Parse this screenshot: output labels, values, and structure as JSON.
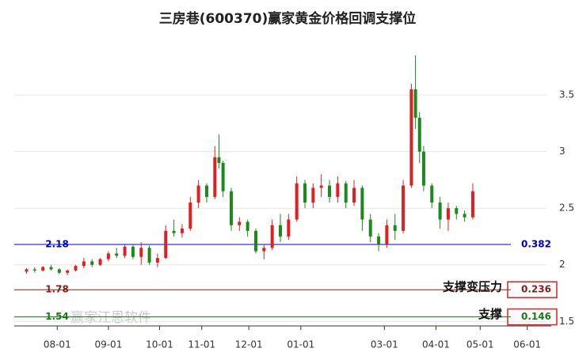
{
  "chart_data": {
    "type": "candlestick",
    "title": "三房巷(600370)赢家黄金价格回调支撑位",
    "watermark": "赢家江恩软件",
    "up_color": "#e02020",
    "down_color": "#1a8a1a",
    "xlim": [
      -3,
      127
    ],
    "ylim": [
      1.46,
      4.06
    ],
    "yticks": [
      1.5,
      2,
      2.5,
      3,
      3.5
    ],
    "xticks": [
      {
        "value": 7.5,
        "label": "08-01"
      },
      {
        "value": 20,
        "label": "09-01"
      },
      {
        "value": 32.5,
        "label": "10-01"
      },
      {
        "value": 42.8,
        "label": "11-01"
      },
      {
        "value": 54.3,
        "label": "12-01"
      },
      {
        "value": 67,
        "label": "01-01"
      },
      {
        "value": 87.4,
        "label": "03-01"
      },
      {
        "value": 100,
        "label": "04-01"
      },
      {
        "value": 110.8,
        "label": "05-01"
      },
      {
        "value": 122.3,
        "label": "06-01"
      }
    ],
    "grid": true,
    "candles": [
      [
        0,
        1.94,
        1.97,
        1.92,
        1.96
      ],
      [
        2,
        1.96,
        1.98,
        1.93,
        1.95
      ],
      [
        4,
        1.95,
        1.99,
        1.94,
        1.98
      ],
      [
        6,
        1.98,
        2.0,
        1.95,
        1.96
      ],
      [
        8,
        1.96,
        1.97,
        1.92,
        1.93
      ],
      [
        10,
        1.93,
        1.96,
        1.91,
        1.95
      ],
      [
        12,
        1.95,
        2.0,
        1.94,
        1.99
      ],
      [
        14,
        1.99,
        2.06,
        1.97,
        2.03
      ],
      [
        16,
        2.03,
        2.05,
        1.98,
        2.0
      ],
      [
        18,
        2.0,
        2.06,
        1.99,
        2.05
      ],
      [
        20,
        2.05,
        2.12,
        2.03,
        2.1
      ],
      [
        22,
        2.1,
        2.15,
        2.06,
        2.08
      ],
      [
        24,
        2.08,
        2.18,
        2.06,
        2.16
      ],
      [
        26,
        2.16,
        2.18,
        2.05,
        2.07
      ],
      [
        28,
        2.07,
        2.2,
        2.0,
        2.15
      ],
      [
        30,
        2.15,
        2.17,
        2.0,
        2.02
      ],
      [
        32,
        2.02,
        2.1,
        1.98,
        2.06
      ],
      [
        34,
        2.06,
        2.35,
        2.05,
        2.3
      ],
      [
        36,
        2.3,
        2.4,
        2.25,
        2.28
      ],
      [
        38,
        2.28,
        2.36,
        2.24,
        2.32
      ],
      [
        40,
        2.32,
        2.6,
        2.3,
        2.55
      ],
      [
        42,
        2.55,
        2.75,
        2.5,
        2.7
      ],
      [
        44,
        2.7,
        2.72,
        2.55,
        2.6
      ],
      [
        46,
        2.6,
        3.05,
        2.58,
        2.95
      ],
      [
        47,
        2.95,
        3.15,
        2.85,
        2.9
      ],
      [
        48,
        2.9,
        2.92,
        2.6,
        2.65
      ],
      [
        50,
        2.65,
        2.68,
        2.3,
        2.35
      ],
      [
        52,
        2.35,
        2.42,
        2.3,
        2.38
      ],
      [
        54,
        2.38,
        2.4,
        2.25,
        2.3
      ],
      [
        56,
        2.3,
        2.32,
        2.1,
        2.12
      ],
      [
        58,
        2.12,
        2.18,
        2.05,
        2.15
      ],
      [
        60,
        2.15,
        2.4,
        2.13,
        2.35
      ],
      [
        62,
        2.35,
        2.45,
        2.2,
        2.25
      ],
      [
        64,
        2.25,
        2.45,
        2.22,
        2.4
      ],
      [
        66,
        2.4,
        2.78,
        2.38,
        2.72
      ],
      [
        68,
        2.72,
        2.75,
        2.5,
        2.55
      ],
      [
        70,
        2.55,
        2.72,
        2.5,
        2.68
      ],
      [
        72,
        2.68,
        2.8,
        2.6,
        2.7
      ],
      [
        74,
        2.7,
        2.75,
        2.55,
        2.6
      ],
      [
        76,
        2.6,
        2.78,
        2.55,
        2.72
      ],
      [
        78,
        2.72,
        2.74,
        2.5,
        2.55
      ],
      [
        80,
        2.55,
        2.75,
        2.52,
        2.68
      ],
      [
        82,
        2.68,
        2.7,
        2.3,
        2.4
      ],
      [
        84,
        2.4,
        2.45,
        2.2,
        2.25
      ],
      [
        86,
        2.25,
        2.28,
        2.12,
        2.18
      ],
      [
        88,
        2.18,
        2.4,
        2.15,
        2.35
      ],
      [
        90,
        2.35,
        2.45,
        2.22,
        2.3
      ],
      [
        92,
        2.3,
        2.75,
        2.28,
        2.7
      ],
      [
        94,
        2.7,
        3.6,
        2.68,
        3.55
      ],
      [
        95,
        3.55,
        3.85,
        3.2,
        3.3
      ],
      [
        96,
        3.3,
        3.35,
        2.9,
        3.0
      ],
      [
        97,
        3.0,
        3.05,
        2.65,
        2.7
      ],
      [
        99,
        2.7,
        2.72,
        2.5,
        2.55
      ],
      [
        101,
        2.55,
        2.6,
        2.32,
        2.4
      ],
      [
        103,
        2.4,
        2.55,
        2.3,
        2.5
      ],
      [
        105,
        2.5,
        2.52,
        2.4,
        2.45
      ],
      [
        107,
        2.45,
        2.48,
        2.38,
        2.42
      ],
      [
        109,
        2.42,
        2.72,
        2.4,
        2.65
      ]
    ],
    "levels": [
      {
        "price": 2.18,
        "ratio": 0.382,
        "color": "#0000cc"
      },
      {
        "price": 1.78,
        "ratio": 0.236,
        "color": "#8b1a1a",
        "note": "支撑变压力"
      },
      {
        "price": 1.54,
        "ratio": 0.146,
        "color": "#1a7a1a",
        "note": "支撑"
      }
    ]
  }
}
